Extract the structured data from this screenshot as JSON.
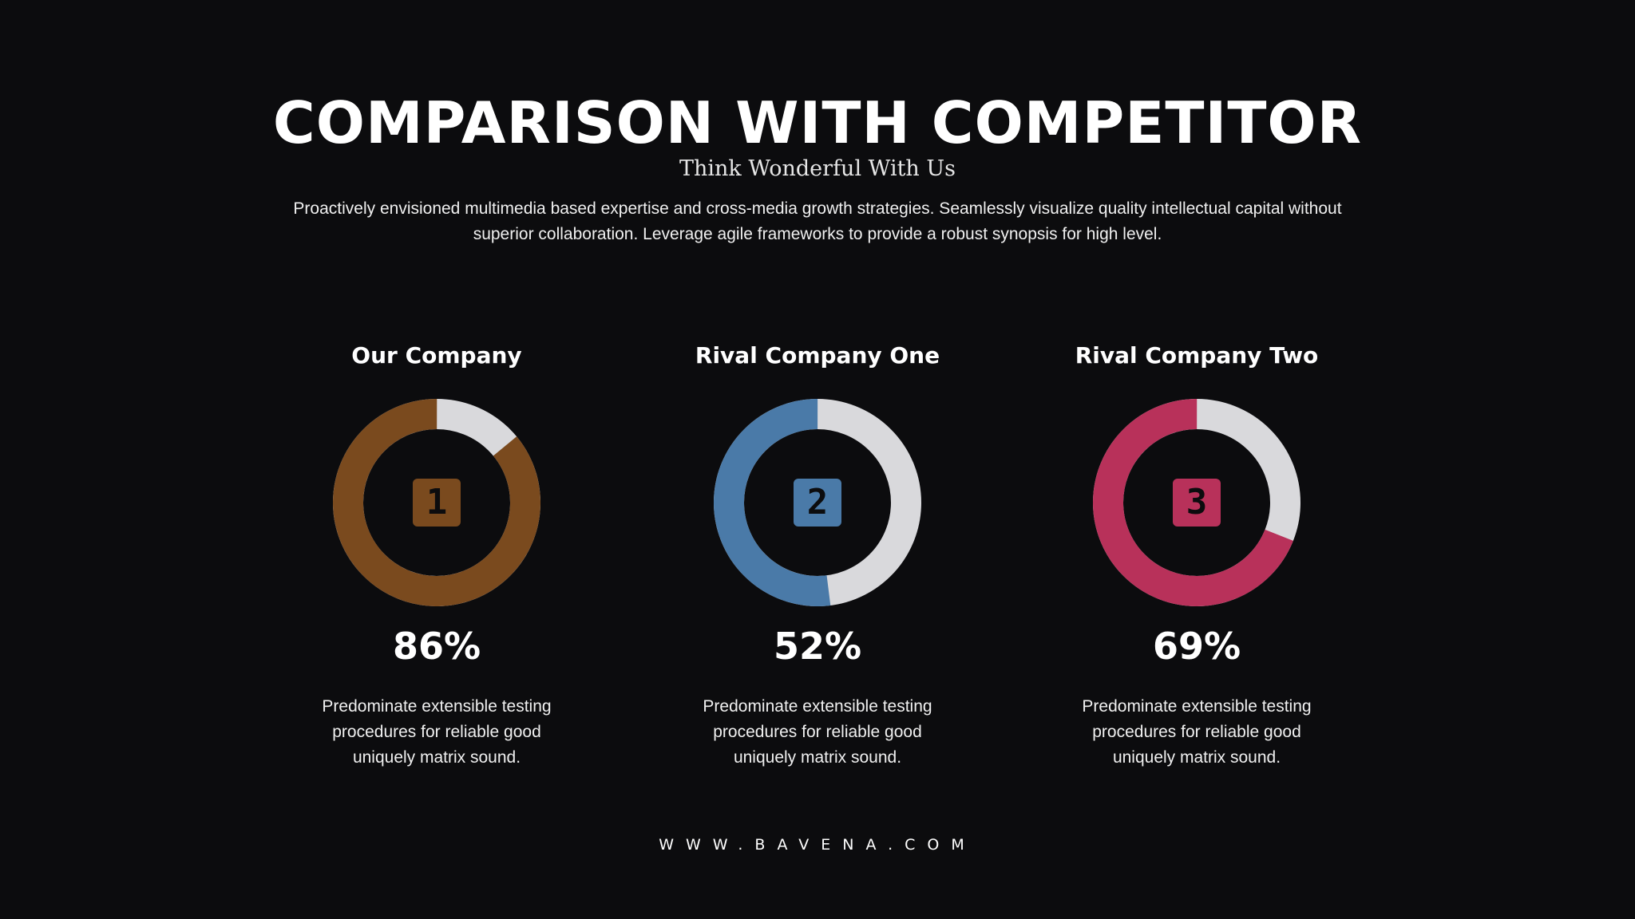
{
  "header": {
    "title": "COMPARISON WITH COMPETITOR",
    "subtitle": "Think Wonderful With Us",
    "intro": "Proactively envisioned multimedia based expertise and cross-media growth strategies. Seamlessly visualize quality intellectual capital without superior collaboration. Leverage agile frameworks to provide a robust synopsis for high level."
  },
  "chart_data": [
    {
      "type": "pie",
      "title": "Our Company",
      "badge": "1",
      "value_label": "86%",
      "slices": [
        {
          "label": "Our Company",
          "value": 86,
          "color": "#7a4a1e"
        },
        {
          "label": "",
          "value": 14,
          "color": "#d9d9dc"
        }
      ],
      "description": "Predominate extensible testing procedures for reliable good uniquely matrix sound."
    },
    {
      "type": "pie",
      "title": "Rival Company One",
      "badge": "2",
      "value_label": "52%",
      "slices": [
        {
          "label": "Rival Company One",
          "value": 52,
          "color": "#4a7aa8"
        },
        {
          "label": "",
          "value": 48,
          "color": "#d9d9dc"
        }
      ],
      "description": "Predominate extensible testing procedures for reliable good uniquely matrix sound."
    },
    {
      "type": "pie",
      "title": "Rival Company Two",
      "badge": "3",
      "value_label": "69%",
      "slices": [
        {
          "label": "Rival Company Two",
          "value": 69,
          "color": "#b8315a"
        },
        {
          "label": "",
          "value": 31,
          "color": "#d9d9dc"
        }
      ],
      "description": "Predominate extensible testing procedures for reliable good uniquely matrix sound."
    }
  ],
  "footer": {
    "website": "WWW.BAVENA.COM"
  }
}
